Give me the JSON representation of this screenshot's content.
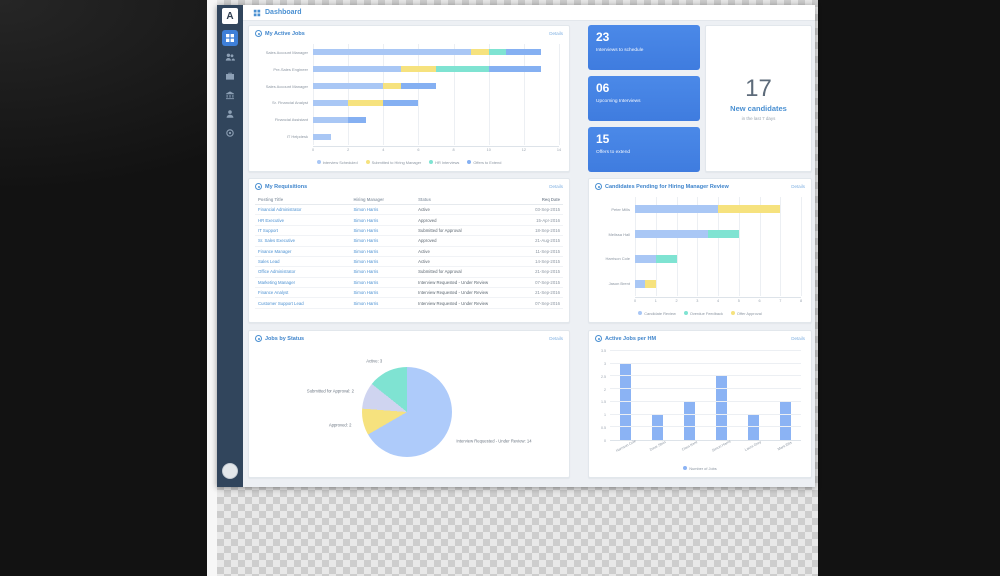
{
  "header": {
    "title": "Dashboard"
  },
  "sidebar": {
    "logo_letter": "A",
    "items": [
      {
        "name": "dashboard",
        "active": true
      },
      {
        "name": "candidates",
        "active": false
      },
      {
        "name": "jobs",
        "active": false
      },
      {
        "name": "departments",
        "active": false
      },
      {
        "name": "profile",
        "active": false
      },
      {
        "name": "settings",
        "active": false
      }
    ]
  },
  "stat_cards": [
    {
      "value": "23",
      "label": "Interviews to schedule"
    },
    {
      "value": "06",
      "label": "Upcoming Interviews"
    },
    {
      "value": "15",
      "label": "Offers to extend"
    }
  ],
  "highlight_card": {
    "value": "17",
    "label": "New candidates",
    "sublabel": "in the last 7 days"
  },
  "panels": {
    "active_jobs": {
      "title": "My Active Jobs",
      "link": "Details"
    },
    "requisitions": {
      "title": "My Requisitions",
      "link": "Details"
    },
    "candidates_pending": {
      "title": "Candidates Pending for Hiring Manager Review",
      "link": "Details"
    },
    "jobs_by_status": {
      "title": "Jobs by Status",
      "link": "Details"
    },
    "jobs_per_hm": {
      "title": "Active Jobs per HM",
      "link": "Details"
    }
  },
  "requisitions_table": {
    "columns": [
      "Posting Title",
      "Hiring Manager",
      "Status",
      "Req Date"
    ],
    "rows": [
      [
        "Financial Administrator",
        "Simon Harris",
        "Active",
        "03-Sep-2015"
      ],
      [
        "HR Executive",
        "Simon Harris",
        "Approved",
        "15-Apr-2016"
      ],
      [
        "IT Support",
        "Simon Harris",
        "Submitted for Approval",
        "18-Sep-2016"
      ],
      [
        "Sr. Sales Executive",
        "Simon Harris",
        "Approved",
        "21-Aug-2015"
      ],
      [
        "Finance Manager",
        "Simon Harris",
        "Active",
        "11-Sep-2015"
      ],
      [
        "Sales Lead",
        "Simon Harris",
        "Active",
        "14-Sep-2015"
      ],
      [
        "Office Administrator",
        "Simon Harris",
        "Submitted for Approval",
        "21-Sep-2015"
      ],
      [
        "Marketing Manager",
        "Simon Harris",
        "Interview Requested - Under Review",
        "07-Sep-2015"
      ],
      [
        "Finance Analyst",
        "Simon Harris",
        "Interview Requested - Under Review",
        "21-Sep-2016"
      ],
      [
        "Customer Support Lead",
        "Simon Harris",
        "Interview Requested - Under Review",
        "07-Sep-2016"
      ]
    ]
  },
  "chart_data": [
    {
      "id": "active-jobs",
      "type": "bar",
      "orientation": "horizontal",
      "stacked": true,
      "title": "My Active Jobs",
      "categories": [
        "Sales Account Manager",
        "Pre-Sales Engineer",
        "Sales Account Manager",
        "Sr. Financial Analyst",
        "Financial Assistant",
        "IT Helpdesk"
      ],
      "series": [
        {
          "name": "Interview Scheduled",
          "color": "#a9c7f5",
          "values": [
            9,
            5,
            4,
            2,
            2,
            1
          ]
        },
        {
          "name": "Submitted to Hiring Manager",
          "color": "#f6e27e",
          "values": [
            1,
            2,
            1,
            2,
            0,
            0
          ]
        },
        {
          "name": "HR Interviews",
          "color": "#7fe3d2",
          "values": [
            1,
            3,
            0,
            0,
            0,
            0
          ]
        },
        {
          "name": "Offers to Extend",
          "color": "#85b0f2",
          "values": [
            2,
            3,
            2,
            2,
            1,
            0
          ]
        }
      ],
      "xlim": [
        0,
        14
      ],
      "xticks": [
        0,
        2,
        4,
        6,
        8,
        10,
        12,
        14
      ]
    },
    {
      "id": "candidates-pending",
      "type": "bar",
      "orientation": "horizontal",
      "stacked": true,
      "title": "Candidates Pending for Hiring Manager Review",
      "categories": [
        "Peter Mills",
        "Melissa Hall",
        "Harrison Cole",
        "Jason Brent"
      ],
      "series": [
        {
          "name": "Candidate Review",
          "color": "#a9c7f5",
          "values": [
            4,
            3.5,
            1,
            0.5
          ]
        },
        {
          "name": "Overdue Feedback",
          "color": "#7fe3d2",
          "values": [
            0,
            1.5,
            1,
            0
          ]
        },
        {
          "name": "Offer Approval",
          "color": "#f6e27e",
          "values": [
            3,
            0,
            0,
            0.5
          ]
        }
      ],
      "xlim": [
        0,
        8
      ],
      "xticks": [
        0,
        1,
        2,
        3,
        4,
        5,
        6,
        7,
        8
      ]
    },
    {
      "id": "jobs-by-status",
      "type": "pie",
      "title": "Jobs by Status",
      "slices": [
        {
          "label": "Interview Requested - Under Review",
          "value": 14,
          "color": "#aecbfa"
        },
        {
          "label": "Approved",
          "value": 2,
          "color": "#f6e27e"
        },
        {
          "label": "Submitted for Approval",
          "value": 2,
          "color": "#cfd4f0"
        },
        {
          "label": "Active",
          "value": 3,
          "color": "#7fe3d2"
        }
      ]
    },
    {
      "id": "jobs-per-hm",
      "type": "bar",
      "orientation": "vertical",
      "title": "Active Jobs per HM",
      "categories": [
        "Harrison Cole",
        "Dave Stein",
        "Clara Kent",
        "Simon Harris",
        "Laura Grey",
        "Mark Ellis"
      ],
      "values": [
        3,
        1,
        1.5,
        2.5,
        1,
        1.5
      ],
      "color": "#8bb3f4",
      "ylim": [
        0,
        3.5
      ],
      "yticks": [
        0,
        0.5,
        1,
        1.5,
        2,
        2.5,
        3,
        3.5
      ],
      "legend": "Number of Jobs"
    }
  ]
}
